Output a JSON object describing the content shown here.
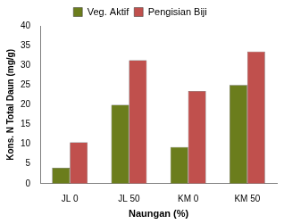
{
  "chart_data": {
    "type": "bar",
    "categories": [
      "JL 0",
      "JL 50",
      "KM 0",
      "KM 50"
    ],
    "series": [
      {
        "name": "Veg. Aktif",
        "color": "#6b7d1c",
        "values": [
          4,
          20,
          9.3,
          25
        ]
      },
      {
        "name": "Pengisian Biji",
        "color": "#c0504d",
        "values": [
          10.5,
          31.3,
          23.5,
          33.5
        ]
      }
    ],
    "x_label": "Naungan (%)",
    "y_label": "Kons. N Total Daun (mg/g)",
    "ylim": [
      0,
      40
    ],
    "yticks": [
      0,
      5,
      10,
      15,
      20,
      25,
      30,
      35,
      40
    ],
    "grid": false,
    "legend": "top"
  }
}
